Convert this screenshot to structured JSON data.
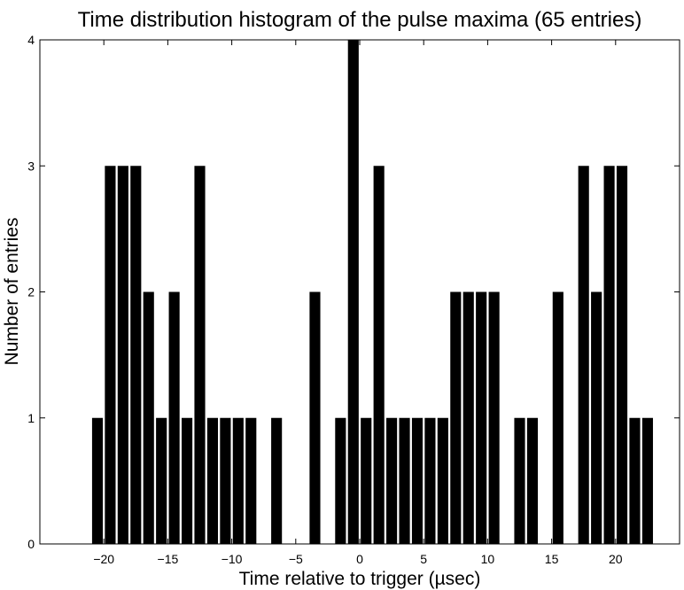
{
  "chart_data": {
    "type": "bar",
    "title": "Time distribution histogram of the pulse maxima  (65 entries)",
    "xlabel": "Time relative to trigger (µsec)",
    "ylabel": "Number of entries",
    "xlim": [
      -25,
      25
    ],
    "ylim": [
      0,
      4
    ],
    "bin_width": 1,
    "x_ticks": [
      -20,
      -15,
      -10,
      -5,
      0,
      5,
      10,
      15,
      20
    ],
    "x_tick_labels": [
      "−20",
      "−15",
      "−10",
      "−5",
      "0",
      "5",
      "10",
      "15",
      "20"
    ],
    "y_ticks": [
      0,
      1,
      2,
      3,
      4
    ],
    "y_tick_labels": [
      "0",
      "1",
      "2",
      "3",
      "4"
    ],
    "grid": false,
    "bar_color": "#000000",
    "bins": [
      {
        "x": -20.5,
        "value": 1
      },
      {
        "x": -19.5,
        "value": 3
      },
      {
        "x": -18.5,
        "value": 3
      },
      {
        "x": -17.5,
        "value": 3
      },
      {
        "x": -16.5,
        "value": 2
      },
      {
        "x": -15.5,
        "value": 1
      },
      {
        "x": -14.5,
        "value": 2
      },
      {
        "x": -13.5,
        "value": 1
      },
      {
        "x": -12.5,
        "value": 3
      },
      {
        "x": -11.5,
        "value": 1
      },
      {
        "x": -10.5,
        "value": 1
      },
      {
        "x": -9.5,
        "value": 1
      },
      {
        "x": -8.5,
        "value": 1
      },
      {
        "x": -6.5,
        "value": 1
      },
      {
        "x": -3.5,
        "value": 2
      },
      {
        "x": -1.5,
        "value": 1
      },
      {
        "x": -0.5,
        "value": 4
      },
      {
        "x": 0.5,
        "value": 1
      },
      {
        "x": 1.5,
        "value": 3
      },
      {
        "x": 2.5,
        "value": 1
      },
      {
        "x": 3.5,
        "value": 1
      },
      {
        "x": 4.5,
        "value": 1
      },
      {
        "x": 5.5,
        "value": 1
      },
      {
        "x": 6.5,
        "value": 1
      },
      {
        "x": 7.5,
        "value": 2
      },
      {
        "x": 8.5,
        "value": 2
      },
      {
        "x": 9.5,
        "value": 2
      },
      {
        "x": 10.5,
        "value": 2
      },
      {
        "x": 12.5,
        "value": 1
      },
      {
        "x": 13.5,
        "value": 1
      },
      {
        "x": 15.5,
        "value": 2
      },
      {
        "x": 17.5,
        "value": 3
      },
      {
        "x": 18.5,
        "value": 2
      },
      {
        "x": 19.5,
        "value": 3
      },
      {
        "x": 20.5,
        "value": 3
      },
      {
        "x": 21.5,
        "value": 1
      },
      {
        "x": 22.5,
        "value": 1
      }
    ]
  }
}
